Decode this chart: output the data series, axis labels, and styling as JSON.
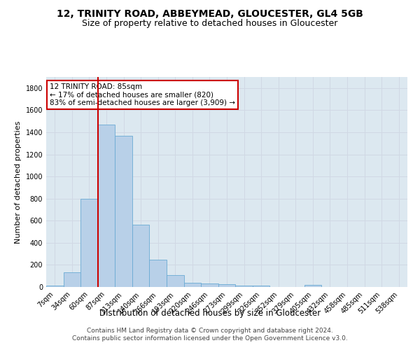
{
  "title1": "12, TRINITY ROAD, ABBEYMEAD, GLOUCESTER, GL4 5GB",
  "title2": "Size of property relative to detached houses in Gloucester",
  "xlabel": "Distribution of detached houses by size in Gloucester",
  "ylabel": "Number of detached properties",
  "categories": [
    "7sqm",
    "34sqm",
    "60sqm",
    "87sqm",
    "113sqm",
    "140sqm",
    "166sqm",
    "193sqm",
    "220sqm",
    "246sqm",
    "273sqm",
    "299sqm",
    "326sqm",
    "352sqm",
    "379sqm",
    "405sqm",
    "432sqm",
    "458sqm",
    "485sqm",
    "511sqm",
    "538sqm"
  ],
  "values": [
    10,
    130,
    795,
    1470,
    1370,
    565,
    250,
    110,
    38,
    30,
    28,
    10,
    10,
    0,
    0,
    20,
    0,
    0,
    0,
    0,
    0
  ],
  "bar_color": "#b8d0e8",
  "bar_edge_color": "#6aaad4",
  "vline_color": "#cc0000",
  "vline_x_index": 3,
  "annotation_text": "12 TRINITY ROAD: 85sqm\n← 17% of detached houses are smaller (820)\n83% of semi-detached houses are larger (3,909) →",
  "annotation_box_color": "#ffffff",
  "annotation_box_edge_color": "#cc0000",
  "ylim": [
    0,
    1900
  ],
  "yticks": [
    0,
    200,
    400,
    600,
    800,
    1000,
    1200,
    1400,
    1600,
    1800
  ],
  "grid_color": "#d0d8e4",
  "bg_color": "#dce8f0",
  "footer": "Contains HM Land Registry data © Crown copyright and database right 2024.\nContains public sector information licensed under the Open Government Licence v3.0.",
  "title1_fontsize": 10,
  "title2_fontsize": 9,
  "xlabel_fontsize": 8.5,
  "ylabel_fontsize": 8,
  "tick_fontsize": 7,
  "annot_fontsize": 7.5,
  "footer_fontsize": 6.5
}
